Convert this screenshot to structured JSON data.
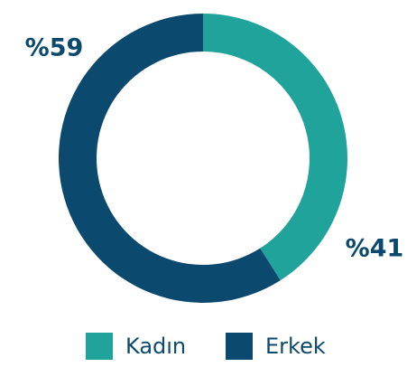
{
  "chart_data": {
    "type": "donut",
    "categories": [
      "Kadın",
      "Erkek"
    ],
    "series": [
      {
        "name": "Kadın",
        "color": "#1fa39a"
      },
      {
        "name": "Erkek",
        "color": "#0b4a6e"
      }
    ],
    "values": [
      41,
      59
    ],
    "value_labels": [
      "%41",
      "%59"
    ]
  }
}
